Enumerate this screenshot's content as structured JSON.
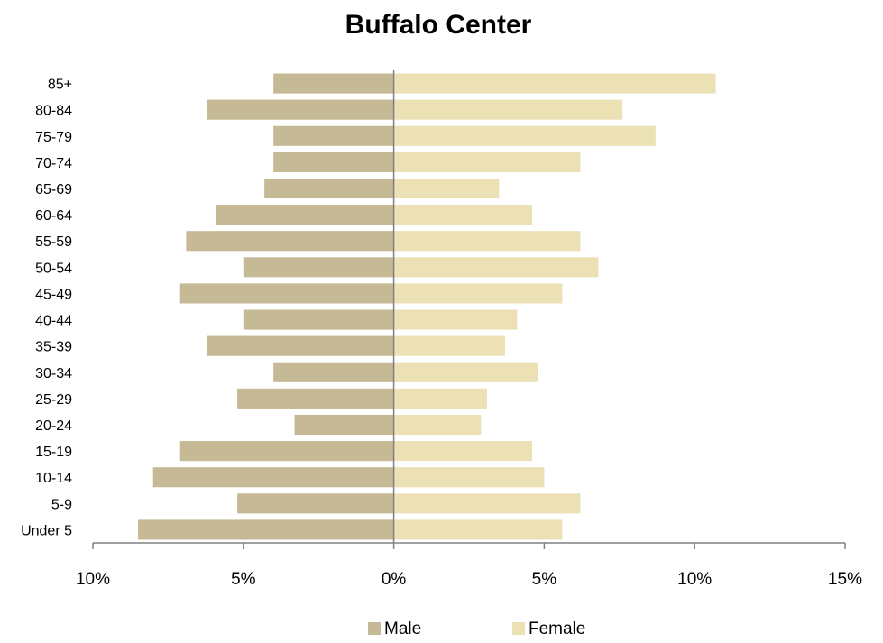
{
  "chart_data": {
    "type": "bar",
    "orientation": "horizontal",
    "layout": "population-pyramid",
    "title": "Buffalo Center",
    "categories": [
      "Under 5",
      "5-9",
      "10-14",
      "15-19",
      "20-24",
      "25-29",
      "30-34",
      "35-39",
      "40-44",
      "45-49",
      "50-54",
      "55-59",
      "60-64",
      "65-69",
      "70-74",
      "75-79",
      "80-84",
      "85+"
    ],
    "series": [
      {
        "name": "Male",
        "color": "#c6b995",
        "direction": "left",
        "values": [
          8.5,
          5.2,
          8.0,
          7.1,
          3.3,
          5.2,
          4.0,
          6.2,
          5.0,
          7.1,
          5.0,
          6.9,
          5.9,
          4.3,
          4.0,
          4.0,
          6.2,
          4.0
        ]
      },
      {
        "name": "Female",
        "color": "#ebe1b5",
        "direction": "right",
        "values": [
          5.6,
          6.2,
          5.0,
          4.6,
          2.9,
          3.1,
          4.8,
          3.7,
          4.1,
          5.6,
          6.8,
          6.2,
          4.6,
          3.5,
          6.2,
          8.7,
          7.6,
          10.7
        ]
      }
    ],
    "x_ticks": [
      "10%",
      "5%",
      "0%",
      "5%",
      "10%",
      "15%"
    ],
    "xlim": [
      -10,
      15
    ],
    "legend_position": "bottom",
    "grid": false
  }
}
